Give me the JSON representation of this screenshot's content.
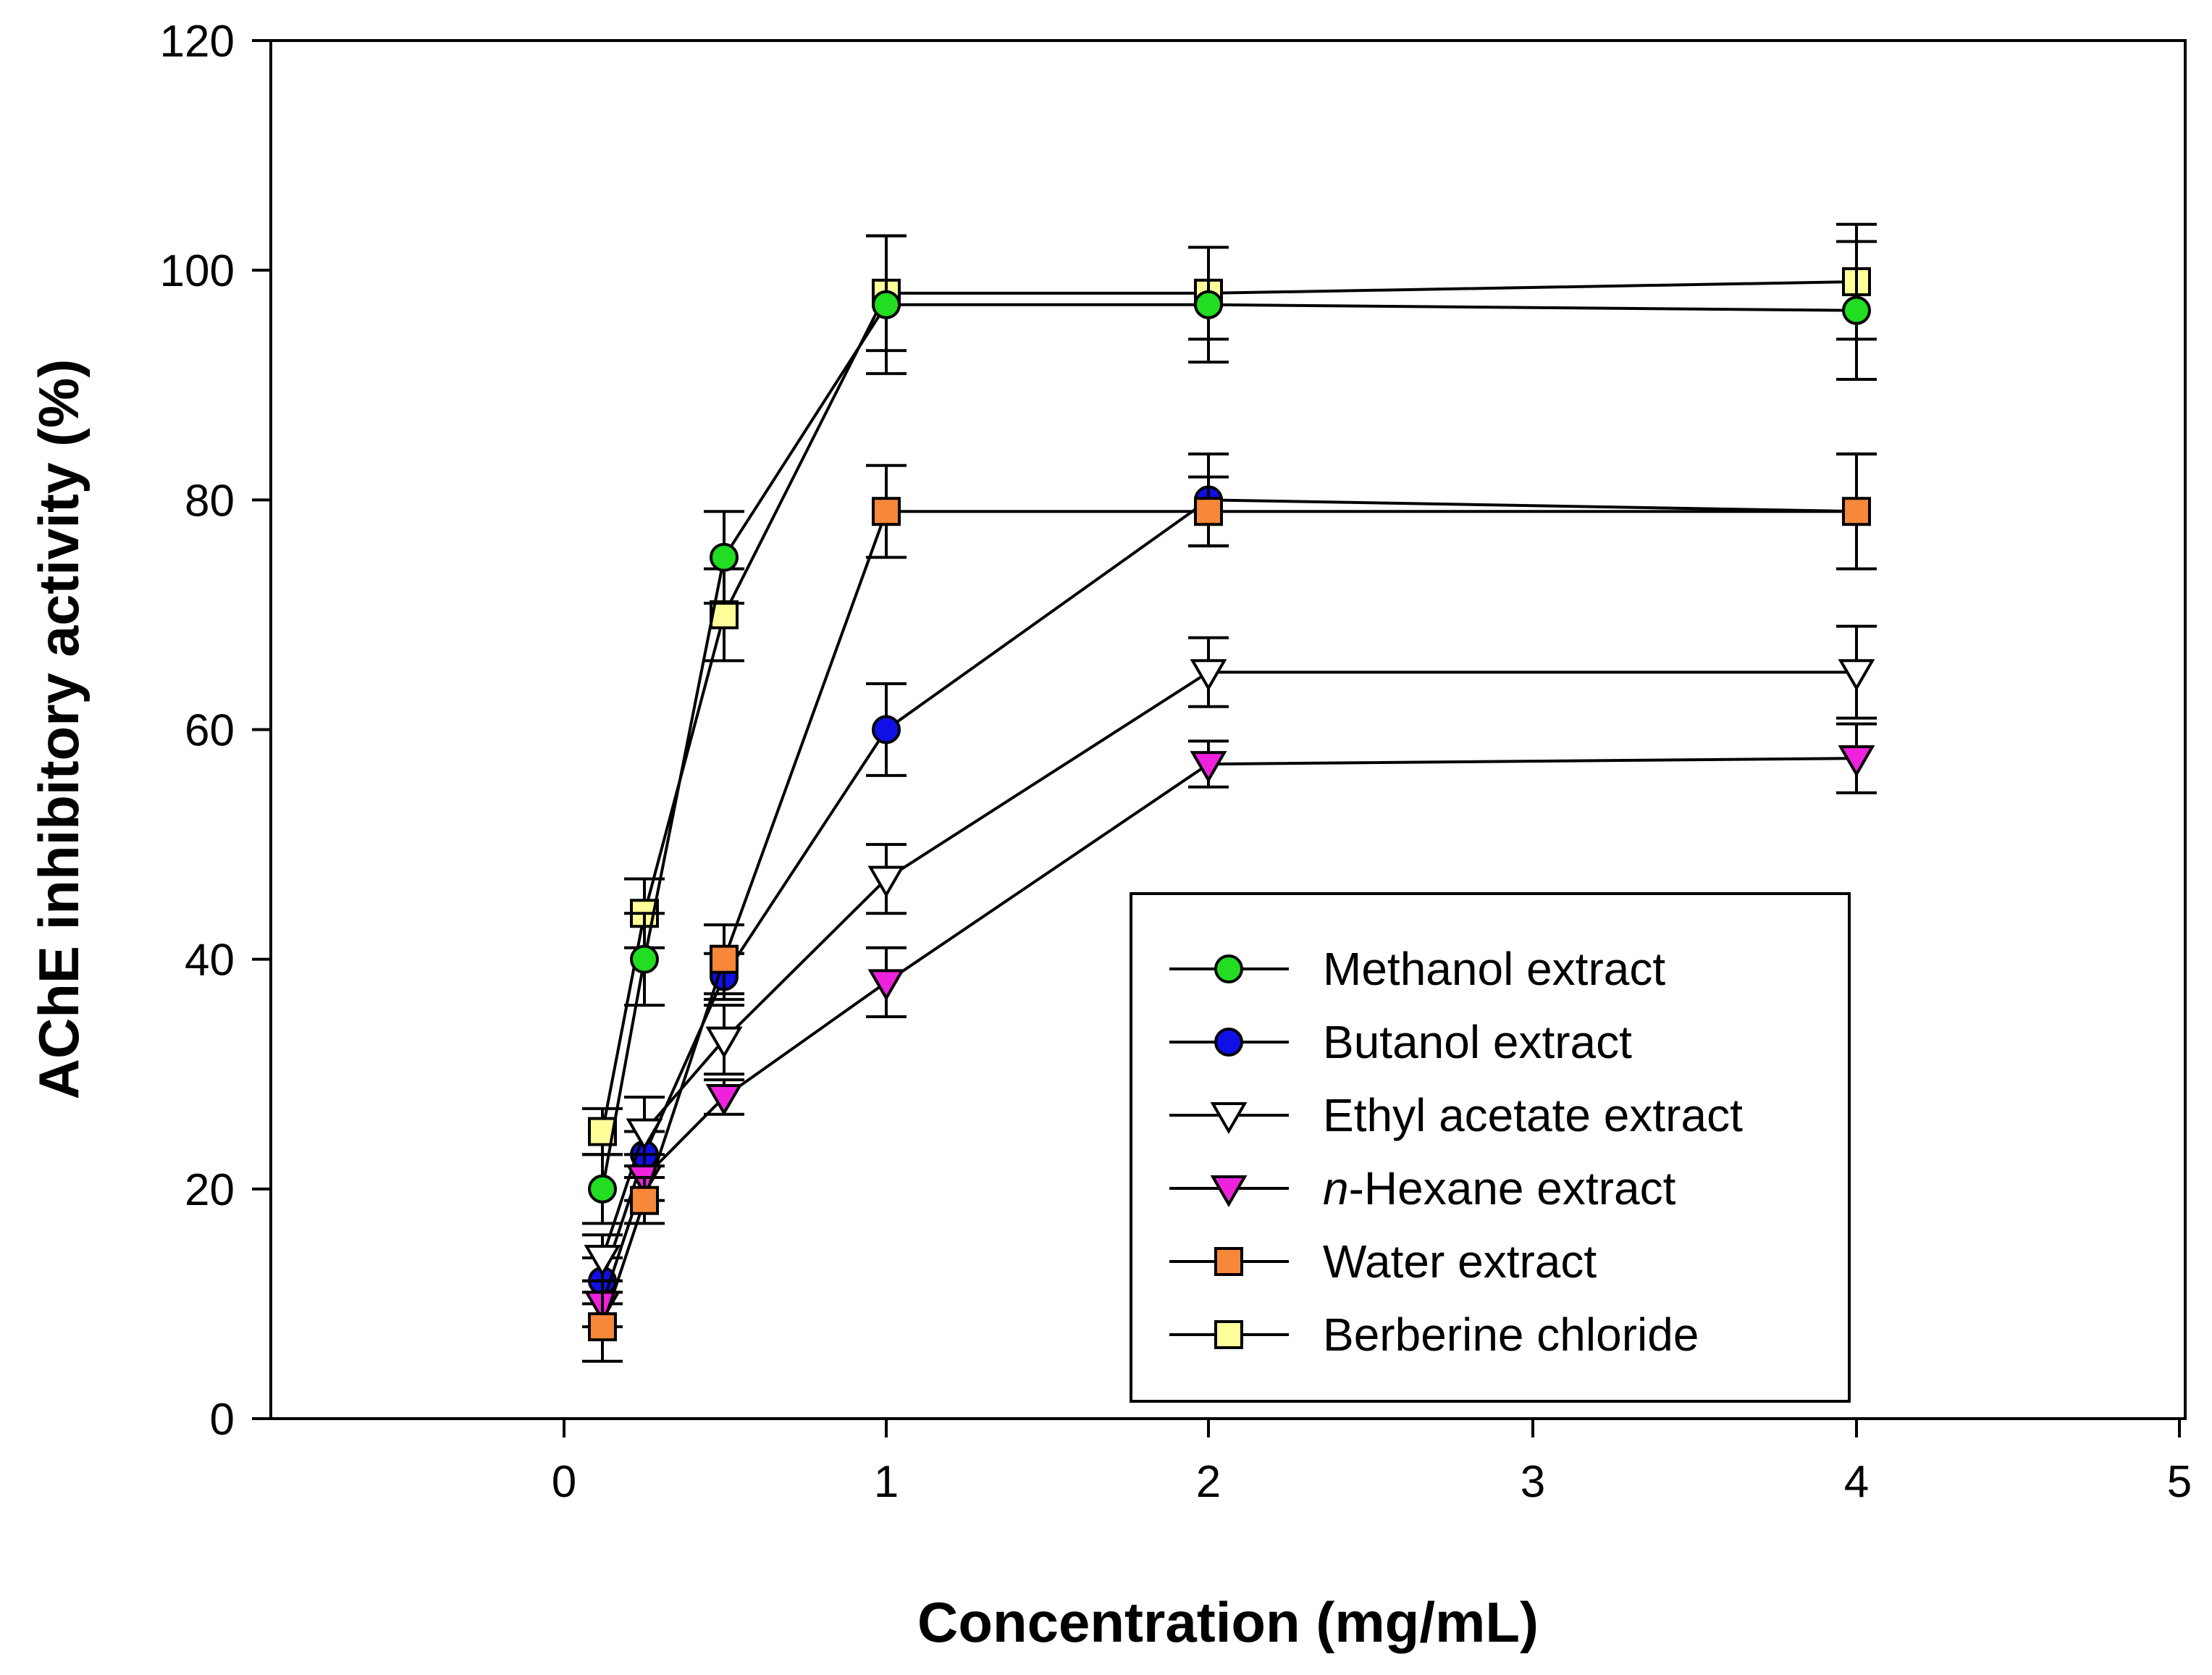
{
  "chart_data": {
    "type": "line",
    "title": "",
    "xlabel": "Concentration (mg/mL)",
    "ylabel": "AChE inhibitory activity (%)",
    "x_ticks": [
      "0",
      "1",
      "2",
      "3",
      "4",
      "5"
    ],
    "y_ticks": [
      "0",
      "20",
      "40",
      "60",
      "80",
      "100",
      "120"
    ],
    "ylim": [
      0,
      120
    ],
    "x": [
      0.125,
      0.25,
      0.5,
      1,
      2,
      4
    ],
    "legend_position": "bottom-right",
    "series": [
      {
        "name": "Methanol extract",
        "prefix": "",
        "italic": "",
        "suffix": "Methanol extract",
        "marker": "circle",
        "color": "#22dd22",
        "values": [
          20,
          40,
          75,
          97,
          97,
          96.5
        ],
        "errors": [
          3,
          4,
          4,
          6,
          5,
          6
        ]
      },
      {
        "name": "Butanol extract",
        "prefix": "",
        "italic": "",
        "suffix": "Butanol extract",
        "marker": "circle",
        "color": "#1010e6",
        "values": [
          12,
          23,
          38.5,
          60,
          80,
          79
        ],
        "errors": [
          2,
          2,
          2,
          4,
          4,
          5
        ]
      },
      {
        "name": "Ethyl acetate extract",
        "prefix": "",
        "italic": "",
        "suffix": "Ethyl acetate extract",
        "marker": "triangle-down",
        "color": "#ffffff",
        "values": [
          14,
          25,
          33,
          47,
          65,
          65
        ],
        "errors": [
          2,
          3,
          3,
          3,
          3,
          4
        ]
      },
      {
        "name": "n-Hexane extract",
        "prefix": "",
        "italic": "n",
        "suffix": "-Hexane extract",
        "marker": "triangle-down",
        "color": "#ee22dd",
        "values": [
          10,
          21,
          28,
          38,
          57,
          57.5
        ],
        "errors": [
          2,
          2,
          1.5,
          3,
          2,
          3
        ]
      },
      {
        "name": "Water extract",
        "prefix": "",
        "italic": "",
        "suffix": "Water extract",
        "marker": "square",
        "color": "#f7883a",
        "values": [
          8,
          19,
          40,
          79,
          79,
          79
        ],
        "errors": [
          3,
          2,
          3,
          4,
          3,
          5
        ]
      },
      {
        "name": "Berberine chloride",
        "prefix": "",
        "italic": "",
        "suffix": "Berberine chloride",
        "marker": "square",
        "color": "#ffff99",
        "values": [
          25,
          44,
          70,
          98,
          98,
          99
        ],
        "errors": [
          2,
          3,
          4,
          5,
          4,
          5
        ]
      }
    ]
  }
}
